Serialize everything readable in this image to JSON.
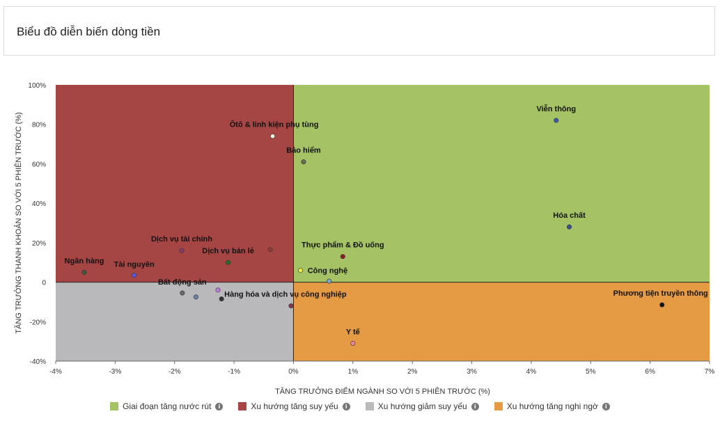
{
  "header": {
    "title": "Biểu đồ diễn biến dòng tiền"
  },
  "chart_data": {
    "type": "scatter",
    "title": "",
    "xlabel": "TĂNG TRƯỞNG ĐIỂM NGÀNH SO VỚI 5 PHIÊN TRƯỚC (%)",
    "ylabel": "TĂNG TRƯỞNG THANH KHOẢN SO VỚI 5 PHIÊN TRƯỚC (%)",
    "xlim": [
      -4,
      7
    ],
    "ylim": [
      -40,
      100
    ],
    "x_ticks": [
      "-4%",
      "-3%",
      "-2%",
      "-1%",
      "0%",
      "1%",
      "2%",
      "3%",
      "4%",
      "5%",
      "6%",
      "7%"
    ],
    "y_ticks": [
      "-40%",
      "-20%",
      "0",
      "20%",
      "40%",
      "60%",
      "80%",
      "100%"
    ],
    "x_tick_values": [
      -4,
      -3,
      -2,
      -1,
      0,
      1,
      2,
      3,
      4,
      5,
      6,
      7
    ],
    "y_tick_values": [
      -40,
      -20,
      0,
      20,
      40,
      60,
      80,
      100
    ],
    "quadrant_colors": {
      "top_right": "#a5c264",
      "top_left": "#a64644",
      "bottom_left": "#b9b9bc",
      "bottom_right": "#e59a44"
    },
    "legend": [
      {
        "label": "Giai đoạn tăng nước rút",
        "color": "#a5c264"
      },
      {
        "label": "Xu hướng tăng suy yếu",
        "color": "#a64644"
      },
      {
        "label": "Xu hướng giảm suy yếu",
        "color": "#b9b9bc"
      },
      {
        "label": "Xu hướng tăng nghi ngờ",
        "color": "#e59a44"
      }
    ],
    "points": [
      {
        "name": "Viễn thông",
        "x": 4.42,
        "y": 82,
        "color": "#3a5ca8"
      },
      {
        "name": "Ôtô & linh kiện phụ tùng",
        "x": -0.35,
        "y": 74,
        "color": "#f4f4e0"
      },
      {
        "name": "Bảo hiểm",
        "x": 0.17,
        "y": 61,
        "color": "#6b6b52"
      },
      {
        "name": "Hóa chất",
        "x": 4.64,
        "y": 28,
        "color": "#3a4e9a"
      },
      {
        "name": "Dịch vụ tài chính",
        "x": -1.88,
        "y": 16,
        "color": "#8a3a6a"
      },
      {
        "name": "Dịch vụ bán lẻ",
        "x": -1.1,
        "y": 10,
        "color": "#2e6b1e"
      },
      {
        "name": "Thực phẩm & Đồ uống",
        "x": 0.83,
        "y": 13,
        "color": "#8a1f2a"
      },
      {
        "name": "Ngân hàng",
        "x": -3.52,
        "y": 5,
        "color": "#3b5a3a"
      },
      {
        "name": "Tài nguyên",
        "x": -2.68,
        "y": 3.5,
        "color": "#5a5ae0"
      },
      {
        "name": "Công nghệ",
        "x": 0.12,
        "y": 6,
        "color": "#f0f040"
      },
      {
        "name": "Bất động sản",
        "x": -1.87,
        "y": -5.5,
        "color": "#666666"
      },
      {
        "name": "Hàng hóa và dịch vụ công nghiệp",
        "x": -1.21,
        "y": -8.5,
        "color": "#333333"
      },
      {
        "name": "Phương tiện truyền thông",
        "x": 6.2,
        "y": -11.5,
        "color": "#111111"
      },
      {
        "name": "Y tế",
        "x": 1.0,
        "y": -31,
        "color": "#e88aa0"
      }
    ],
    "unlabeled_points": [
      {
        "x": -0.39,
        "y": 16.5,
        "color": "#8a3a3a"
      },
      {
        "x": 0.6,
        "y": 0.5,
        "color": "#7aa6d8"
      },
      {
        "x": -1.64,
        "y": -7.5,
        "color": "#5a78a8"
      },
      {
        "x": -1.27,
        "y": -4,
        "color": "#c070e0"
      },
      {
        "x": -0.04,
        "y": -12,
        "color": "#7a2040"
      }
    ]
  }
}
